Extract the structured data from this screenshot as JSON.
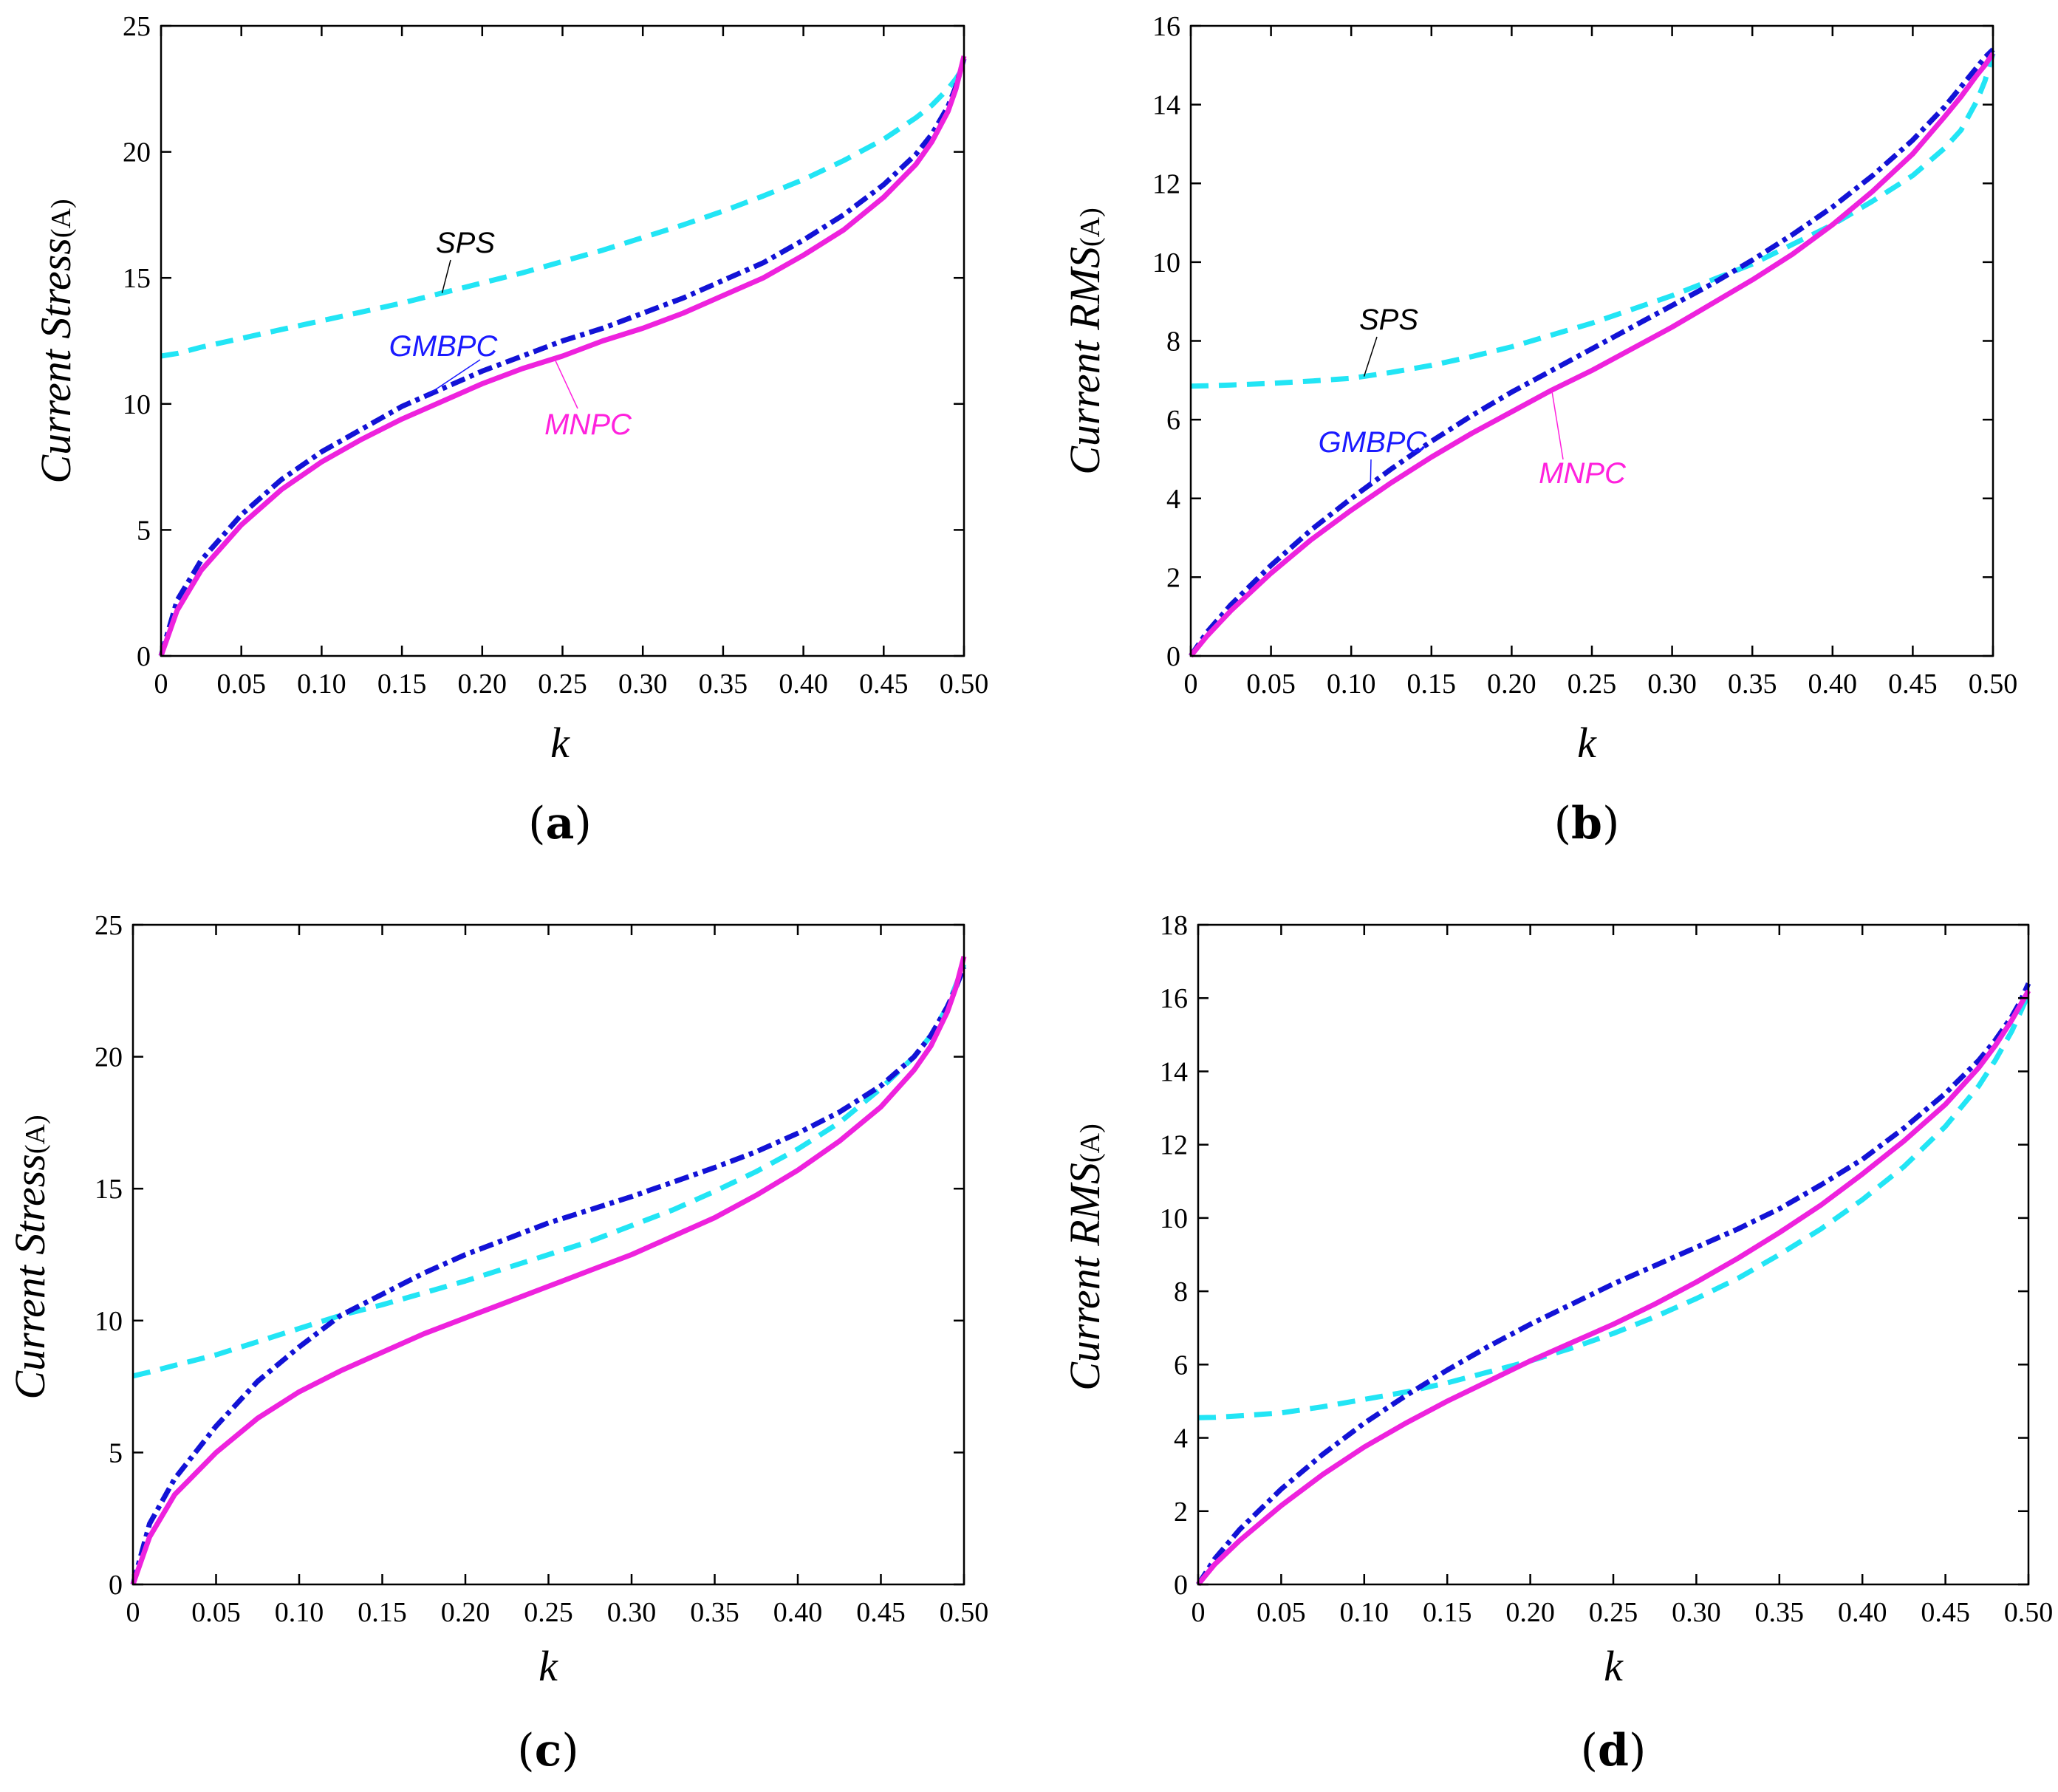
{
  "figure": {
    "colors": {
      "SPS": "#22e5f5",
      "GMBPC": "#1212d6",
      "MNPC": "#ee22dd",
      "annotation_SPS": "#000000",
      "annotation_GMBPC": "#1a1aff",
      "annotation_MNPC": "#ff22dd"
    }
  },
  "chart_data": [
    {
      "id": "a",
      "panel_label": "a",
      "type": "line",
      "xlabel": "k",
      "ylabel": "Current Stress",
      "ylabel_unit": "(A)",
      "xlim": [
        0,
        0.5
      ],
      "ylim": [
        0,
        25
      ],
      "xticks": [
        0,
        0.05,
        0.1,
        0.15,
        0.2,
        0.25,
        0.3,
        0.35,
        0.4,
        0.45,
        0.5
      ],
      "xtick_labels": [
        "0",
        "0.05",
        "0.10",
        "0.15",
        "0.20",
        "0.25",
        "0.30",
        "0.35",
        "0.40",
        "0.45",
        "0.50"
      ],
      "yticks": [
        0,
        5,
        10,
        15,
        20,
        25
      ],
      "ytick_labels": [
        "0",
        "5",
        "10",
        "15",
        "20",
        "25"
      ],
      "x": [
        0,
        0.01,
        0.025,
        0.05,
        0.075,
        0.1,
        0.125,
        0.15,
        0.175,
        0.2,
        0.225,
        0.25,
        0.275,
        0.3,
        0.325,
        0.35,
        0.375,
        0.4,
        0.425,
        0.45,
        0.47,
        0.48,
        0.49,
        0.495,
        0.5
      ],
      "series": [
        {
          "name": "SPS",
          "style": "dashed",
          "values": [
            11.9,
            12.0,
            12.25,
            12.6,
            12.95,
            13.3,
            13.65,
            14.0,
            14.4,
            14.8,
            15.2,
            15.65,
            16.1,
            16.6,
            17.1,
            17.65,
            18.25,
            18.9,
            19.65,
            20.5,
            21.35,
            21.85,
            22.5,
            22.9,
            23.4
          ]
        },
        {
          "name": "GMBPC",
          "style": "dashdot",
          "values": [
            0.0,
            2.2,
            3.8,
            5.6,
            7.0,
            8.1,
            9.0,
            9.9,
            10.6,
            11.3,
            11.9,
            12.5,
            13.0,
            13.6,
            14.2,
            14.9,
            15.6,
            16.5,
            17.5,
            18.7,
            19.9,
            20.7,
            21.8,
            22.6,
            23.7
          ]
        },
        {
          "name": "MNPC",
          "style": "solid",
          "values": [
            0.0,
            1.8,
            3.4,
            5.2,
            6.6,
            7.7,
            8.6,
            9.4,
            10.1,
            10.8,
            11.4,
            11.9,
            12.5,
            13.0,
            13.6,
            14.3,
            15.0,
            15.9,
            16.9,
            18.2,
            19.5,
            20.4,
            21.6,
            22.5,
            23.8
          ]
        }
      ],
      "annotations": [
        {
          "text": "SPS",
          "series": "SPS"
        },
        {
          "text": "GMBPC",
          "series": "GMBPC"
        },
        {
          "text": "MNPC",
          "series": "MNPC"
        }
      ]
    },
    {
      "id": "b",
      "panel_label": "b",
      "type": "line",
      "xlabel": "k",
      "ylabel": "Current RMS",
      "ylabel_unit": "(A)",
      "xlim": [
        0,
        0.5
      ],
      "ylim": [
        0,
        16
      ],
      "xticks": [
        0,
        0.05,
        0.1,
        0.15,
        0.2,
        0.25,
        0.3,
        0.35,
        0.4,
        0.45,
        0.5
      ],
      "xtick_labels": [
        "0",
        "0.05",
        "0.10",
        "0.15",
        "0.20",
        "0.25",
        "0.30",
        "0.35",
        "0.40",
        "0.45",
        "0.50"
      ],
      "yticks": [
        0,
        2,
        4,
        6,
        8,
        10,
        12,
        14,
        16
      ],
      "ytick_labels": [
        "0",
        "2",
        "4",
        "6",
        "8",
        "10",
        "12",
        "14",
        "16"
      ],
      "x": [
        0,
        0.01,
        0.025,
        0.05,
        0.075,
        0.1,
        0.125,
        0.15,
        0.175,
        0.2,
        0.225,
        0.25,
        0.275,
        0.3,
        0.325,
        0.35,
        0.375,
        0.4,
        0.425,
        0.45,
        0.47,
        0.48,
        0.49,
        0.495,
        0.5
      ],
      "series": [
        {
          "name": "SPS",
          "style": "dashed",
          "values": [
            6.85,
            6.86,
            6.88,
            6.92,
            6.98,
            7.05,
            7.2,
            7.38,
            7.6,
            7.85,
            8.15,
            8.45,
            8.8,
            9.15,
            9.55,
            9.95,
            10.45,
            10.95,
            11.55,
            12.2,
            12.9,
            13.35,
            14.1,
            14.6,
            15.3
          ]
        },
        {
          "name": "GMBPC",
          "style": "dashdot",
          "values": [
            0.0,
            0.6,
            1.3,
            2.3,
            3.2,
            4.0,
            4.75,
            5.45,
            6.1,
            6.7,
            7.25,
            7.8,
            8.35,
            8.9,
            9.45,
            10.05,
            10.7,
            11.4,
            12.2,
            13.1,
            13.95,
            14.45,
            14.95,
            15.2,
            15.4
          ]
        },
        {
          "name": "MNPC",
          "style": "solid",
          "values": [
            0.0,
            0.5,
            1.15,
            2.1,
            2.95,
            3.7,
            4.4,
            5.05,
            5.65,
            6.2,
            6.75,
            7.25,
            7.8,
            8.35,
            8.95,
            9.55,
            10.2,
            10.95,
            11.8,
            12.75,
            13.7,
            14.2,
            14.75,
            15.0,
            15.3
          ]
        }
      ],
      "annotations": [
        {
          "text": "SPS",
          "series": "SPS"
        },
        {
          "text": "GMBPC",
          "series": "GMBPC"
        },
        {
          "text": "MNPC",
          "series": "MNPC"
        }
      ]
    },
    {
      "id": "c",
      "panel_label": "c",
      "type": "line",
      "xlabel": "k",
      "ylabel": "Current Stress",
      "ylabel_unit": "(A)",
      "xlim": [
        0,
        0.5
      ],
      "ylim": [
        0,
        25
      ],
      "xticks": [
        0,
        0.05,
        0.1,
        0.15,
        0.2,
        0.25,
        0.3,
        0.35,
        0.4,
        0.45,
        0.5
      ],
      "xtick_labels": [
        "0",
        "0.05",
        "0.10",
        "0.15",
        "0.20",
        "0.25",
        "0.30",
        "0.35",
        "0.40",
        "0.45",
        "0.50"
      ],
      "yticks": [
        0,
        5,
        10,
        15,
        20,
        25
      ],
      "ytick_labels": [
        "0",
        "5",
        "10",
        "15",
        "20",
        "25"
      ],
      "x": [
        0,
        0.01,
        0.025,
        0.05,
        0.075,
        0.1,
        0.125,
        0.15,
        0.175,
        0.2,
        0.225,
        0.25,
        0.275,
        0.3,
        0.325,
        0.35,
        0.375,
        0.4,
        0.425,
        0.45,
        0.47,
        0.48,
        0.49,
        0.495,
        0.5
      ],
      "series": [
        {
          "name": "SPS",
          "style": "dashed",
          "values": [
            7.9,
            8.05,
            8.3,
            8.7,
            9.2,
            9.7,
            10.2,
            10.6,
            11.05,
            11.5,
            12.0,
            12.5,
            13.0,
            13.6,
            14.2,
            14.9,
            15.65,
            16.5,
            17.5,
            18.8,
            20.0,
            20.8,
            21.9,
            22.7,
            23.5
          ]
        },
        {
          "name": "GMBPC",
          "style": "dashdot",
          "values": [
            0.0,
            2.3,
            4.0,
            6.0,
            7.7,
            9.0,
            10.2,
            11.0,
            11.8,
            12.5,
            13.1,
            13.7,
            14.2,
            14.7,
            15.25,
            15.8,
            16.4,
            17.1,
            17.9,
            18.9,
            20.0,
            20.8,
            21.9,
            22.6,
            23.4
          ]
        },
        {
          "name": "MNPC",
          "style": "solid",
          "values": [
            0.0,
            1.8,
            3.4,
            5.0,
            6.3,
            7.3,
            8.1,
            8.8,
            9.5,
            10.1,
            10.7,
            11.3,
            11.9,
            12.5,
            13.2,
            13.9,
            14.75,
            15.7,
            16.8,
            18.1,
            19.5,
            20.4,
            21.7,
            22.6,
            23.8
          ]
        }
      ]
    },
    {
      "id": "d",
      "panel_label": "d",
      "type": "line",
      "xlabel": "k",
      "ylabel": "Current RMS",
      "ylabel_unit": "(A)",
      "xlim": [
        0,
        0.5
      ],
      "ylim": [
        0,
        18
      ],
      "xticks": [
        0,
        0.05,
        0.1,
        0.15,
        0.2,
        0.25,
        0.3,
        0.35,
        0.4,
        0.45,
        0.5
      ],
      "xtick_labels": [
        "0",
        "0.05",
        "0.10",
        "0.15",
        "0.20",
        "0.25",
        "0.30",
        "0.35",
        "0.40",
        "0.45",
        "0.50"
      ],
      "yticks": [
        0,
        2,
        4,
        6,
        8,
        10,
        12,
        14,
        16,
        18
      ],
      "ytick_labels": [
        "0",
        "2",
        "4",
        "6",
        "8",
        "10",
        "12",
        "14",
        "16",
        "18"
      ],
      "x": [
        0,
        0.01,
        0.025,
        0.05,
        0.075,
        0.1,
        0.125,
        0.15,
        0.175,
        0.2,
        0.225,
        0.25,
        0.275,
        0.3,
        0.325,
        0.35,
        0.375,
        0.4,
        0.425,
        0.45,
        0.47,
        0.48,
        0.49,
        0.495,
        0.5
      ],
      "series": [
        {
          "name": "SPS",
          "style": "dashed",
          "values": [
            4.55,
            4.56,
            4.6,
            4.68,
            4.85,
            5.05,
            5.25,
            5.5,
            5.8,
            6.1,
            6.45,
            6.85,
            7.3,
            7.8,
            8.35,
            9.0,
            9.7,
            10.5,
            11.4,
            12.5,
            13.6,
            14.3,
            15.1,
            15.6,
            16.1
          ]
        },
        {
          "name": "GMBPC",
          "style": "dashdot",
          "values": [
            0.0,
            0.7,
            1.5,
            2.6,
            3.55,
            4.4,
            5.15,
            5.85,
            6.5,
            7.1,
            7.65,
            8.2,
            8.7,
            9.2,
            9.7,
            10.25,
            10.9,
            11.6,
            12.45,
            13.4,
            14.3,
            14.85,
            15.5,
            15.9,
            16.4
          ]
        },
        {
          "name": "MNPC",
          "style": "solid",
          "values": [
            0.0,
            0.55,
            1.2,
            2.15,
            3.0,
            3.75,
            4.4,
            5.0,
            5.55,
            6.1,
            6.6,
            7.1,
            7.65,
            8.25,
            8.9,
            9.6,
            10.35,
            11.2,
            12.1,
            13.1,
            14.1,
            14.7,
            15.4,
            15.8,
            16.2
          ]
        }
      ]
    }
  ]
}
